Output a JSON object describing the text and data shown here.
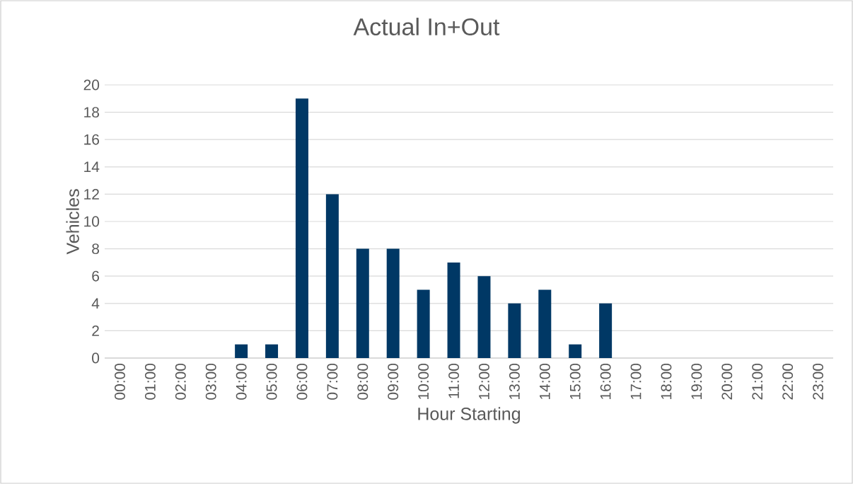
{
  "chart_data": {
    "type": "bar",
    "title": "Actual In+Out",
    "xlabel": "Hour Starting",
    "ylabel": "Vehicles",
    "categories": [
      "00:00",
      "01:00",
      "02:00",
      "03:00",
      "04:00",
      "05:00",
      "06:00",
      "07:00",
      "08:00",
      "09:00",
      "10:00",
      "11:00",
      "12:00",
      "13:00",
      "14:00",
      "15:00",
      "16:00",
      "17:00",
      "18:00",
      "19:00",
      "20:00",
      "21:00",
      "22:00",
      "23:00"
    ],
    "values": [
      0,
      0,
      0,
      0,
      1,
      1,
      19,
      12,
      8,
      8,
      5,
      7,
      6,
      4,
      5,
      1,
      4,
      0,
      0,
      0,
      0,
      0,
      0,
      0
    ],
    "color": "#003865",
    "ylim": [
      0,
      20
    ],
    "yticks": [
      0,
      2,
      4,
      6,
      8,
      10,
      12,
      14,
      16,
      18,
      20
    ],
    "grid": "y"
  }
}
